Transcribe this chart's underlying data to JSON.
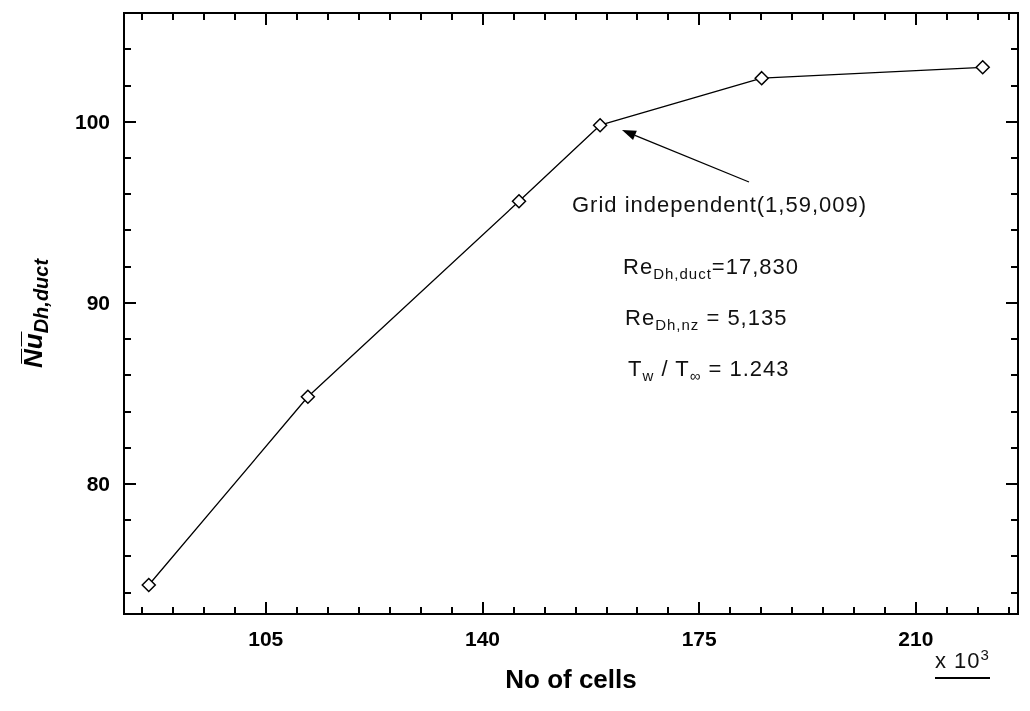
{
  "chart_data": {
    "type": "line",
    "xlabel": "No of cells",
    "ylabel": "N̅u̅$_{Dh,duct}$",
    "x": [
      86.1,
      111.8,
      145.9,
      159.0,
      185.1,
      220.8
    ],
    "series": [
      {
        "color": "#000000",
        "values": [
          74.4,
          84.8,
          95.6,
          99.8,
          102.4,
          103.0
        ]
      }
    ],
    "xlim": [
      82.1,
      226.5
    ],
    "xticks": [
      {
        "value": 85,
        "label": null
      },
      {
        "value": 90,
        "label": null
      },
      {
        "value": 95,
        "label": null
      },
      {
        "value": 100,
        "label": null
      },
      105,
      {
        "value": 110,
        "label": null
      },
      {
        "value": 115,
        "label": null
      },
      {
        "value": 120,
        "label": null
      },
      {
        "value": 125,
        "label": null
      },
      {
        "value": 130,
        "label": null
      },
      {
        "value": 135,
        "label": null
      },
      140,
      {
        "value": 145,
        "label": null
      },
      {
        "value": 150,
        "label": null
      },
      {
        "value": 155,
        "label": null
      },
      {
        "value": 160,
        "label": null
      },
      {
        "value": 165,
        "label": null
      },
      {
        "value": 170,
        "label": null
      },
      175,
      {
        "value": 180,
        "label": null
      },
      {
        "value": 185,
        "label": null
      },
      {
        "value": 190,
        "label": null
      },
      {
        "value": 195,
        "label": null
      },
      {
        "value": 200,
        "label": null
      },
      {
        "value": 205,
        "label": null
      },
      210,
      {
        "value": 215,
        "label": null
      },
      {
        "value": 220,
        "label": null
      },
      {
        "value": 225,
        "label": null
      }
    ],
    "ylim": [
      72.8,
      106
    ],
    "yticks": [
      {
        "value": 74,
        "label": null
      },
      {
        "value": 76,
        "label": null
      },
      {
        "value": 78,
        "label": null
      },
      80,
      {
        "value": 82,
        "label": null
      },
      {
        "value": 84,
        "label": null
      },
      {
        "value": 86,
        "label": null
      },
      {
        "value": 88,
        "label": null
      },
      90,
      {
        "value": 92,
        "label": null
      },
      {
        "value": 94,
        "label": null
      },
      {
        "value": 96,
        "label": null
      },
      {
        "value": 98,
        "label": null
      },
      100,
      {
        "value": 102,
        "label": null
      },
      {
        "value": 104,
        "label": null
      }
    ],
    "marker": "diamond",
    "line_style": "solid",
    "grid": false,
    "annotations": [
      "Grid independent(1,59,009)",
      "Re$_{Dh,duct}$=17,830",
      "Re$_{Dh,nz}$ = 5,135",
      "T$_{w}$ / T$_{∞}$ = 1.243",
      "x 10$^{3}$"
    ]
  }
}
